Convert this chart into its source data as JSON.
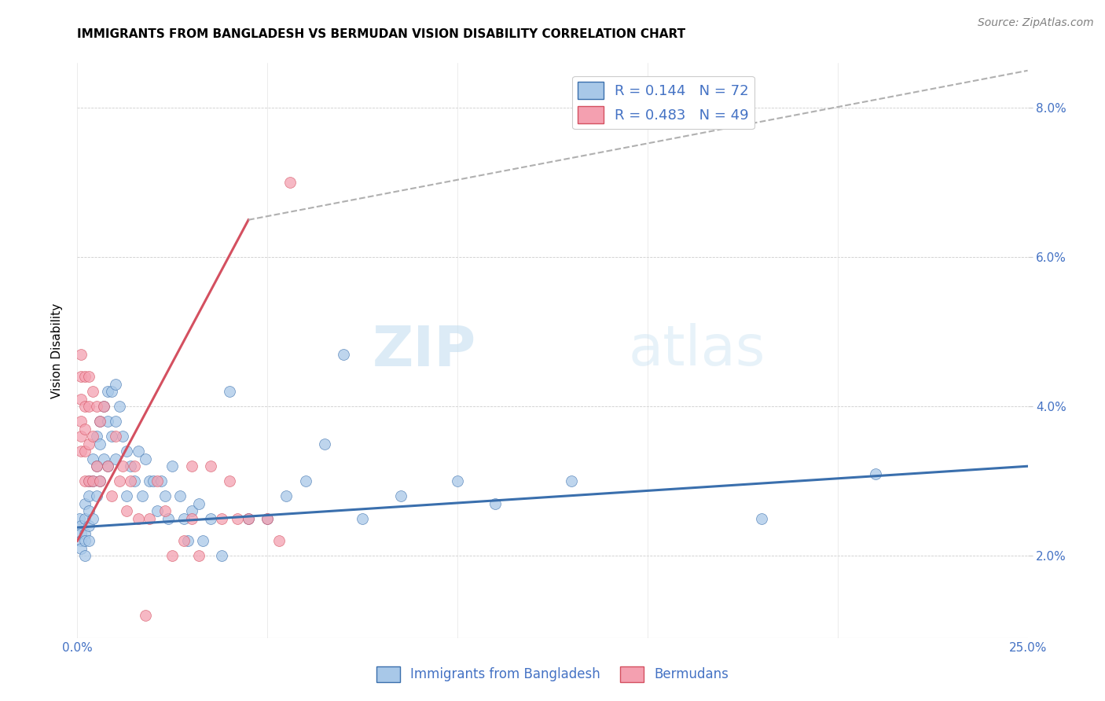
{
  "title": "IMMIGRANTS FROM BANGLADESH VS BERMUDAN VISION DISABILITY CORRELATION CHART",
  "source": "Source: ZipAtlas.com",
  "xlabel_ticks_labels": [
    "0.0%",
    "25.0%"
  ],
  "xlabel_ticks_pos": [
    0.0,
    0.25
  ],
  "ylabel_ticks": [
    "2.0%",
    "4.0%",
    "6.0%",
    "8.0%"
  ],
  "xlabel_range": [
    0.0,
    0.25
  ],
  "ylabel_range": [
    0.009,
    0.086
  ],
  "ylabel": "Vision Disability",
  "legend_blue_R": "0.144",
  "legend_blue_N": "72",
  "legend_pink_R": "0.483",
  "legend_pink_N": "49",
  "legend_label_blue": "Immigrants from Bangladesh",
  "legend_label_pink": "Bermudans",
  "blue_color": "#a8c8e8",
  "pink_color": "#f4a0b0",
  "trendline_blue_color": "#3a6fad",
  "trendline_pink_color": "#d45060",
  "trendline_dashed_color": "#b0b0b0",
  "watermark_color": "#ddeef8",
  "blue_scatter_x": [
    0.0005,
    0.001,
    0.001,
    0.001,
    0.001,
    0.002,
    0.002,
    0.002,
    0.002,
    0.002,
    0.003,
    0.003,
    0.003,
    0.003,
    0.003,
    0.004,
    0.004,
    0.004,
    0.005,
    0.005,
    0.005,
    0.006,
    0.006,
    0.006,
    0.007,
    0.007,
    0.008,
    0.008,
    0.008,
    0.009,
    0.009,
    0.01,
    0.01,
    0.01,
    0.011,
    0.012,
    0.013,
    0.013,
    0.014,
    0.015,
    0.016,
    0.017,
    0.018,
    0.019,
    0.02,
    0.021,
    0.022,
    0.023,
    0.024,
    0.025,
    0.027,
    0.028,
    0.029,
    0.03,
    0.032,
    0.033,
    0.035,
    0.038,
    0.04,
    0.045,
    0.05,
    0.055,
    0.06,
    0.065,
    0.07,
    0.075,
    0.085,
    0.1,
    0.11,
    0.13,
    0.18,
    0.21
  ],
  "blue_scatter_y": [
    0.025,
    0.024,
    0.023,
    0.022,
    0.021,
    0.027,
    0.025,
    0.023,
    0.022,
    0.02,
    0.03,
    0.028,
    0.026,
    0.024,
    0.022,
    0.033,
    0.03,
    0.025,
    0.036,
    0.032,
    0.028,
    0.038,
    0.035,
    0.03,
    0.04,
    0.033,
    0.042,
    0.038,
    0.032,
    0.042,
    0.036,
    0.043,
    0.038,
    0.033,
    0.04,
    0.036,
    0.034,
    0.028,
    0.032,
    0.03,
    0.034,
    0.028,
    0.033,
    0.03,
    0.03,
    0.026,
    0.03,
    0.028,
    0.025,
    0.032,
    0.028,
    0.025,
    0.022,
    0.026,
    0.027,
    0.022,
    0.025,
    0.02,
    0.042,
    0.025,
    0.025,
    0.028,
    0.03,
    0.035,
    0.047,
    0.025,
    0.028,
    0.03,
    0.027,
    0.03,
    0.025,
    0.031
  ],
  "pink_scatter_x": [
    0.001,
    0.001,
    0.001,
    0.001,
    0.001,
    0.001,
    0.002,
    0.002,
    0.002,
    0.002,
    0.002,
    0.003,
    0.003,
    0.003,
    0.003,
    0.004,
    0.004,
    0.004,
    0.005,
    0.005,
    0.006,
    0.006,
    0.007,
    0.008,
    0.009,
    0.01,
    0.011,
    0.012,
    0.013,
    0.014,
    0.015,
    0.016,
    0.018,
    0.019,
    0.021,
    0.023,
    0.025,
    0.028,
    0.03,
    0.032,
    0.035,
    0.038,
    0.04,
    0.042,
    0.045,
    0.05,
    0.053,
    0.056,
    0.03
  ],
  "pink_scatter_y": [
    0.047,
    0.044,
    0.041,
    0.038,
    0.036,
    0.034,
    0.044,
    0.04,
    0.037,
    0.034,
    0.03,
    0.044,
    0.04,
    0.035,
    0.03,
    0.042,
    0.036,
    0.03,
    0.04,
    0.032,
    0.038,
    0.03,
    0.04,
    0.032,
    0.028,
    0.036,
    0.03,
    0.032,
    0.026,
    0.03,
    0.032,
    0.025,
    0.012,
    0.025,
    0.03,
    0.026,
    0.02,
    0.022,
    0.025,
    0.02,
    0.032,
    0.025,
    0.03,
    0.025,
    0.025,
    0.025,
    0.022,
    0.07,
    0.032
  ],
  "blue_trend_x": [
    0.0,
    0.25
  ],
  "blue_trend_y": [
    0.0238,
    0.032
  ],
  "pink_trend_x": [
    0.0,
    0.045
  ],
  "pink_trend_y": [
    0.022,
    0.065
  ],
  "dashed_trend_x": [
    0.045,
    0.25
  ],
  "dashed_trend_y": [
    0.065,
    0.085
  ]
}
